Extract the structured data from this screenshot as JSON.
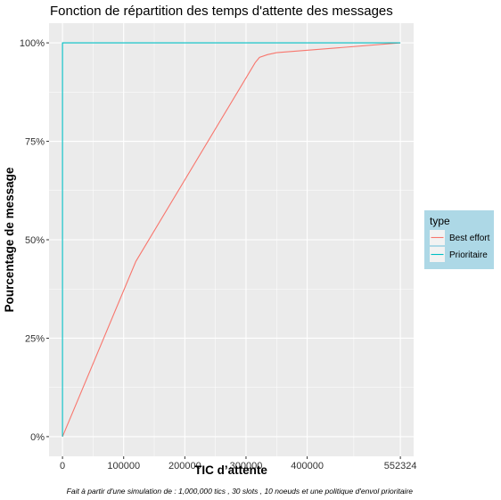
{
  "chart_data": {
    "type": "line",
    "title": "Fonction de répartition des temps d'attente des messages",
    "xlabel": "TIC d’attente",
    "ylabel": "Pourcentage de message",
    "caption": "Fait à partir d'une simulation de : 1,000,000 tics , 30 slots , 10 noeuds et une politique d'envol prioritaire",
    "x_ticks": [
      0,
      100000,
      200000,
      300000,
      400000,
      552324
    ],
    "x_tick_labels": [
      "0",
      "100000",
      "200000",
      "300000",
      "400000",
      "552324"
    ],
    "y_ticks": [
      0,
      25,
      50,
      75,
      100
    ],
    "y_tick_labels": [
      "0%",
      "25%",
      "50%",
      "75%",
      "100%"
    ],
    "xlim": [
      -22000,
      574000
    ],
    "ylim": [
      -5,
      105
    ],
    "grid": true,
    "legend": {
      "title": "type",
      "placement": "right"
    },
    "series": [
      {
        "name": "Best effort",
        "color": "#F8766D",
        "points": [
          [
            0,
            0
          ],
          [
            120000,
            44.5
          ],
          [
            315000,
            95
          ],
          [
            322000,
            96.3
          ],
          [
            335000,
            97.0
          ],
          [
            350000,
            97.5
          ],
          [
            552324,
            100
          ]
        ]
      },
      {
        "name": "Prioritaire",
        "color": "#00BFC4",
        "points": [
          [
            0,
            0
          ],
          [
            0,
            100
          ],
          [
            552324,
            100
          ]
        ]
      }
    ]
  },
  "colors": {
    "panel": "#EBEBEB",
    "legend_bg": "#ADD8E6",
    "grid": "#FFFFFF"
  }
}
